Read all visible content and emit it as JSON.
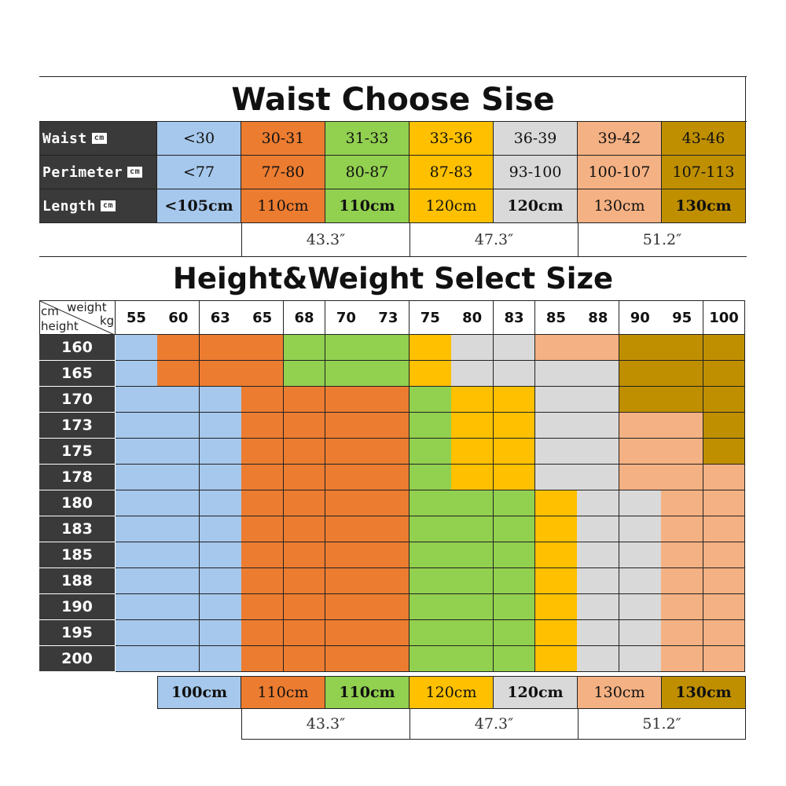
{
  "colors": {
    "blue": "#a6c8ec",
    "orange": "#ec7c30",
    "green": "#92d050",
    "yellow": "#ffc000",
    "gray": "#d9d9d9",
    "peach": "#f4b183",
    "brown": "#bf8f00",
    "dark": "#3a3a3a"
  },
  "waist_table": {
    "title": "Waist Choose Sise",
    "rows": [
      {
        "label": "Waist",
        "unit": "cm",
        "values": [
          "<30",
          "30-31",
          "31-33",
          "33-36",
          "36-39",
          "39-42",
          "43-46"
        ]
      },
      {
        "label": "Perimeter",
        "unit": "cm",
        "values": [
          "<77",
          "77-80",
          "80-87",
          "87-83",
          "93-100",
          "100-107",
          "107-113"
        ]
      },
      {
        "label": "Length",
        "unit": "cm",
        "values": [
          "<105cm",
          "110cm",
          "110cm",
          "120cm",
          "120cm",
          "130cm",
          "130cm"
        ]
      }
    ],
    "column_colors": [
      "blue",
      "orange",
      "green",
      "yellow",
      "gray",
      "peach",
      "brown"
    ],
    "inches": [
      "43.3″",
      "47.3″",
      "51.2″"
    ]
  },
  "size_table": {
    "title": "Height&Weight Select Size",
    "corner": {
      "cm": "cm",
      "weight": "weight",
      "kg": "kg",
      "height": "height"
    },
    "weights": [
      "55",
      "60",
      "63",
      "65",
      "68",
      "70",
      "73",
      "75",
      "80",
      "83",
      "85",
      "88",
      "90",
      "95",
      "100"
    ],
    "heights": [
      "160",
      "165",
      "170",
      "173",
      "175",
      "178",
      "180",
      "183",
      "185",
      "188",
      "190",
      "195",
      "200"
    ],
    "grid": [
      [
        "blue",
        "orange",
        "orange",
        "orange",
        "green",
        "green",
        "green",
        "yellow",
        "gray",
        "gray",
        "peach",
        "peach",
        "brown",
        "brown",
        "brown"
      ],
      [
        "blue",
        "orange",
        "orange",
        "orange",
        "green",
        "green",
        "green",
        "yellow",
        "gray",
        "gray",
        "gray",
        "gray",
        "brown",
        "brown",
        "brown"
      ],
      [
        "blue",
        "blue",
        "blue",
        "orange",
        "orange",
        "orange",
        "orange",
        "green",
        "yellow",
        "yellow",
        "gray",
        "gray",
        "brown",
        "brown",
        "brown"
      ],
      [
        "blue",
        "blue",
        "blue",
        "orange",
        "orange",
        "orange",
        "orange",
        "green",
        "yellow",
        "yellow",
        "gray",
        "gray",
        "peach",
        "peach",
        "brown"
      ],
      [
        "blue",
        "blue",
        "blue",
        "orange",
        "orange",
        "orange",
        "orange",
        "green",
        "yellow",
        "yellow",
        "gray",
        "gray",
        "peach",
        "peach",
        "brown"
      ],
      [
        "blue",
        "blue",
        "blue",
        "orange",
        "orange",
        "orange",
        "orange",
        "green",
        "yellow",
        "yellow",
        "gray",
        "gray",
        "peach",
        "peach",
        "peach"
      ],
      [
        "blue",
        "blue",
        "blue",
        "orange",
        "orange",
        "orange",
        "orange",
        "green",
        "green",
        "green",
        "yellow",
        "gray",
        "gray",
        "peach",
        "peach"
      ],
      [
        "blue",
        "blue",
        "blue",
        "orange",
        "orange",
        "orange",
        "orange",
        "green",
        "green",
        "green",
        "yellow",
        "gray",
        "gray",
        "peach",
        "peach"
      ],
      [
        "blue",
        "blue",
        "blue",
        "orange",
        "orange",
        "orange",
        "orange",
        "green",
        "green",
        "green",
        "yellow",
        "gray",
        "gray",
        "peach",
        "peach"
      ],
      [
        "blue",
        "blue",
        "blue",
        "orange",
        "orange",
        "orange",
        "orange",
        "green",
        "green",
        "green",
        "yellow",
        "gray",
        "gray",
        "peach",
        "peach"
      ],
      [
        "blue",
        "blue",
        "blue",
        "orange",
        "orange",
        "orange",
        "orange",
        "green",
        "green",
        "green",
        "yellow",
        "gray",
        "gray",
        "peach",
        "peach"
      ],
      [
        "blue",
        "blue",
        "blue",
        "orange",
        "orange",
        "orange",
        "orange",
        "green",
        "green",
        "green",
        "yellow",
        "gray",
        "gray",
        "peach",
        "peach"
      ],
      [
        "blue",
        "blue",
        "blue",
        "orange",
        "orange",
        "orange",
        "orange",
        "green",
        "green",
        "green",
        "yellow",
        "gray",
        "gray",
        "peach",
        "peach"
      ]
    ],
    "legend": [
      {
        "label": "100cm",
        "color": "blue"
      },
      {
        "label": "110cm",
        "color": "orange"
      },
      {
        "label": "110cm",
        "color": "green"
      },
      {
        "label": "120cm",
        "color": "yellow"
      },
      {
        "label": "120cm",
        "color": "gray"
      },
      {
        "label": "130cm",
        "color": "peach"
      },
      {
        "label": "130cm",
        "color": "brown"
      }
    ],
    "inches": [
      "43.3″",
      "47.3″",
      "51.2″"
    ]
  }
}
